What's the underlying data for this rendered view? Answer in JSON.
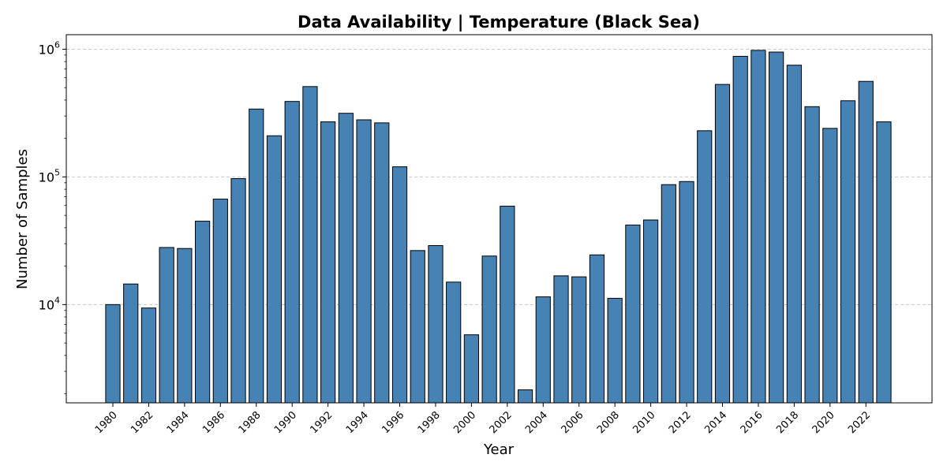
{
  "chart_data": {
    "type": "bar",
    "title": "Data Availability | Temperature (Black Sea)",
    "xlabel": "Year",
    "ylabel": "Number of Samples",
    "yscale": "log",
    "ylim": [
      1700,
      1300000
    ],
    "grid": "y-dashed",
    "bar_color": "#4682b4",
    "edge_color": "#000000",
    "x": [
      1980,
      1981,
      1982,
      1983,
      1984,
      1985,
      1986,
      1987,
      1988,
      1989,
      1990,
      1991,
      1992,
      1993,
      1994,
      1995,
      1996,
      1997,
      1998,
      1999,
      2000,
      2001,
      2002,
      2003,
      2004,
      2005,
      2006,
      2007,
      2008,
      2009,
      2010,
      2011,
      2012,
      2013,
      2014,
      2015,
      2016,
      2017,
      2018,
      2019,
      2020,
      2021,
      2022,
      2023
    ],
    "values": [
      10000,
      14500,
      9400,
      28000,
      27500,
      45000,
      67000,
      97000,
      340000,
      210000,
      390000,
      510000,
      270000,
      315000,
      280000,
      265000,
      120000,
      26500,
      29000,
      15000,
      5800,
      24000,
      59000,
      2150,
      11500,
      16800,
      16500,
      24500,
      11200,
      42000,
      46000,
      87000,
      92000,
      230000,
      530000,
      880000,
      980000,
      950000,
      750000,
      355000,
      240000,
      395000,
      560000,
      270000
    ],
    "x_tick_labels": [
      "1980",
      "1982",
      "1984",
      "1986",
      "1988",
      "1990",
      "1992",
      "1994",
      "1996",
      "1998",
      "2000",
      "2002",
      "2004",
      "2006",
      "2008",
      "2010",
      "2012",
      "2014",
      "2016",
      "2018",
      "2020",
      "2022"
    ],
    "y_ticks": [
      {
        "base": "10",
        "exp": "4",
        "value": 10000
      },
      {
        "base": "10",
        "exp": "5",
        "value": 100000
      },
      {
        "base": "10",
        "exp": "6",
        "value": 1000000
      }
    ]
  }
}
